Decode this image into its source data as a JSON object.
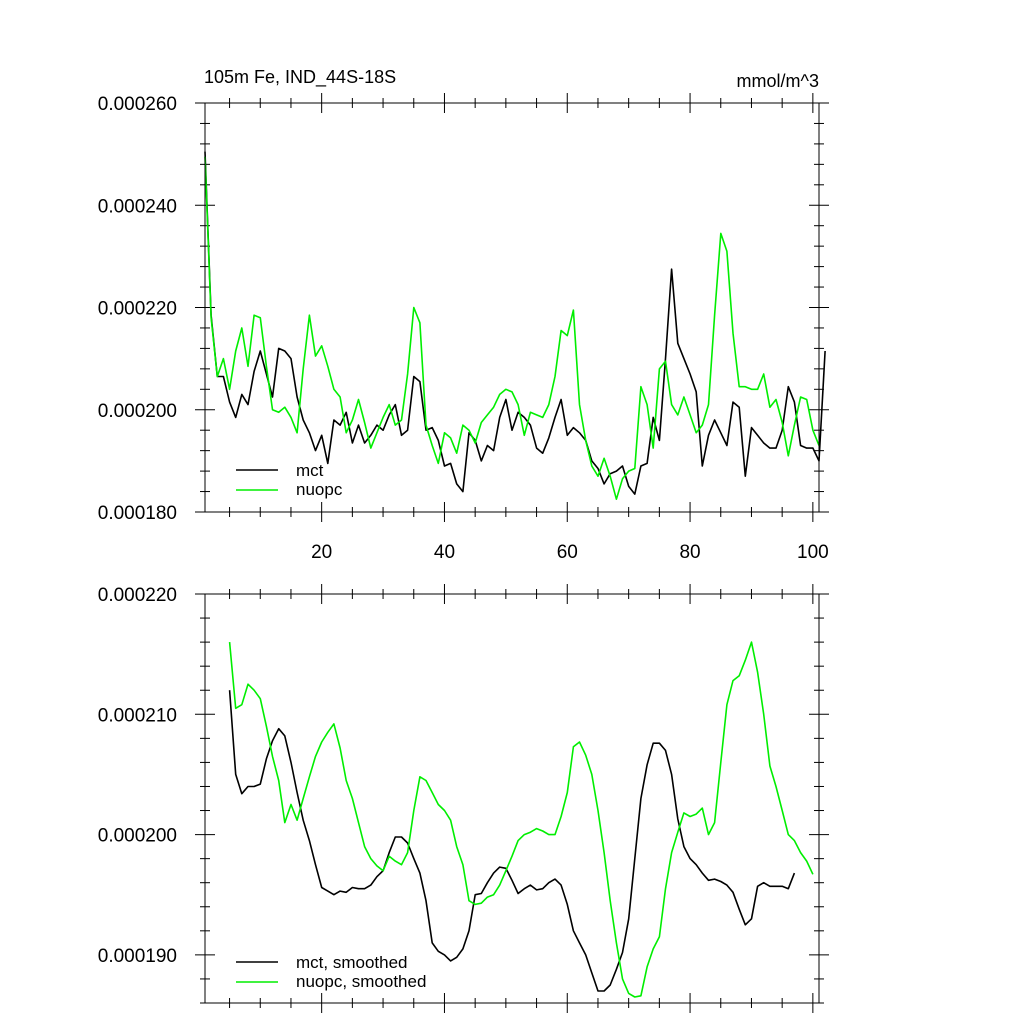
{
  "chart_data": [
    {
      "type": "line",
      "title": "105m Fe, IND_44S-18S",
      "units": "mmol/m^3",
      "xlim": [
        1,
        101
      ],
      "ylim": [
        0.00018,
        0.00026
      ],
      "x_ticks": [
        20,
        40,
        60,
        80,
        100
      ],
      "y_ticks": [
        "0.000180",
        "0.000200",
        "0.000220",
        "0.000240",
        "0.000260"
      ],
      "y_tick_values": [
        0.00018,
        0.0002,
        0.00022,
        0.00024,
        0.00026
      ],
      "legend_position": "bottom-left",
      "series": [
        {
          "name": "mct",
          "color": "#000000",
          "x_start": 1,
          "values": [
            0.0002505,
            0.0002185,
            0.0002065,
            0.0002065,
            0.0002015,
            0.0001985,
            0.000203,
            0.000201,
            0.0002075,
            0.0002115,
            0.000207,
            0.0002025,
            0.000212,
            0.0002115,
            0.00021,
            0.0002025,
            0.000198,
            0.0001955,
            0.000192,
            0.000195,
            0.0001895,
            0.000198,
            0.000197,
            0.0001995,
            0.0001935,
            0.000197,
            0.0001935,
            0.000195,
            0.000197,
            0.000196,
            0.000199,
            0.000201,
            0.000195,
            0.000196,
            0.0002065,
            0.0002055,
            0.000196,
            0.0001965,
            0.000194,
            0.000189,
            0.0001895,
            0.0001855,
            0.000184,
            0.0001955,
            0.000194,
            0.00019,
            0.000193,
            0.000192,
            0.0001985,
            0.000202,
            0.000196,
            0.0001995,
            0.0001985,
            0.000197,
            0.0001925,
            0.0001915,
            0.0001945,
            0.0001985,
            0.000202,
            0.000195,
            0.0001965,
            0.0001955,
            0.000194,
            0.00019,
            0.0001885,
            0.0001855,
            0.0001875,
            0.000188,
            0.000189,
            0.000185,
            0.0001835,
            0.000189,
            0.0001895,
            0.0001985,
            0.000194,
            0.00021,
            0.0002275,
            0.000213,
            0.00021,
            0.000207,
            0.0002035,
            0.000189,
            0.000195,
            0.000198,
            0.0001955,
            0.000193,
            0.0002015,
            0.0002005,
            0.000187,
            0.0001965,
            0.000195,
            0.0001935,
            0.0001925,
            0.0001925,
            0.000196,
            0.0002045,
            0.0002015,
            0.000193,
            0.0001925,
            0.0001925,
            0.00019,
            0.0002115
          ]
        },
        {
          "name": "nuopc",
          "color": "#00ee00",
          "x_start": 1,
          "values": [
            0.0002495,
            0.000218,
            0.0002065,
            0.00021,
            0.000204,
            0.0002115,
            0.000216,
            0.0002085,
            0.0002185,
            0.000218,
            0.0002085,
            0.0002,
            0.0001995,
            0.0002005,
            0.0001985,
            0.0001955,
            0.000208,
            0.0002185,
            0.0002105,
            0.0002125,
            0.0002085,
            0.000204,
            0.0002025,
            0.0001955,
            0.000198,
            0.000202,
            0.0001975,
            0.0001925,
            0.0001955,
            0.0001985,
            0.000201,
            0.000197,
            0.000198,
            0.000207,
            0.00022,
            0.000217,
            0.000197,
            0.000193,
            0.0001895,
            0.0001955,
            0.0001945,
            0.0001915,
            0.000197,
            0.000196,
            0.0001935,
            0.0001975,
            0.000199,
            0.0002005,
            0.000203,
            0.000204,
            0.0002035,
            0.000201,
            0.000195,
            0.0001995,
            0.000199,
            0.0001985,
            0.000201,
            0.0002065,
            0.0002155,
            0.0002145,
            0.0002195,
            0.000201,
            0.000194,
            0.000189,
            0.000187,
            0.0001905,
            0.000187,
            0.0001825,
            0.0001865,
            0.000188,
            0.0001885,
            0.0002045,
            0.000201,
            0.0001925,
            0.000208,
            0.0002095,
            0.000201,
            0.000199,
            0.0002025,
            0.000199,
            0.0001955,
            0.000197,
            0.000201,
            0.0002185,
            0.0002345,
            0.000231,
            0.000215,
            0.0002045,
            0.0002045,
            0.000204,
            0.000204,
            0.000207,
            0.0002005,
            0.000202,
            0.0001975,
            0.000191,
            0.000197,
            0.0002025,
            0.000202,
            0.000196,
            0.000193
          ]
        }
      ]
    },
    {
      "type": "line",
      "title": "",
      "ylim": [
        0.000186,
        0.00022
      ],
      "x_range": [
        1,
        101
      ],
      "y_ticks": [
        "0.000190",
        "0.000200",
        "0.000210",
        "0.000220"
      ],
      "y_tick_values": [
        0.00019,
        0.0002,
        0.00021,
        0.00022
      ],
      "legend_position": "bottom-left",
      "series": [
        {
          "name": "mct, smoothed",
          "color": "#000000",
          "x_start": 5,
          "values": [
            0.000212,
            0.000205,
            0.0002034,
            0.000204,
            0.000204,
            0.0002042,
            0.0002063,
            0.0002078,
            0.0002088,
            0.0002082,
            0.000206,
            0.0002035,
            0.0002012,
            0.0001995,
            0.0001975,
            0.0001956,
            0.0001953,
            0.000195,
            0.0001953,
            0.0001952,
            0.0001956,
            0.0001955,
            0.0001955,
            0.0001958,
            0.0001965,
            0.000197,
            0.0001985,
            0.0001998,
            0.0001998,
            0.0001993,
            0.000198,
            0.0001968,
            0.0001945,
            0.000191,
            0.0001903,
            0.00019,
            0.0001895,
            0.0001898,
            0.0001905,
            0.000192,
            0.000195,
            0.0001951,
            0.000196,
            0.0001968,
            0.0001973,
            0.0001972,
            0.0001962,
            0.0001951,
            0.0001955,
            0.0001958,
            0.0001954,
            0.0001955,
            0.000196,
            0.0001963,
            0.0001958,
            0.0001942,
            0.000192,
            0.000191,
            0.00019,
            0.0001885,
            0.000187,
            0.000187,
            0.0001875,
            0.0001888,
            0.0001902,
            0.000193,
            0.000198,
            0.000203,
            0.0002058,
            0.0002076,
            0.0002076,
            0.000207,
            0.000205,
            0.0002013,
            0.000199,
            0.000198,
            0.0001975,
            0.0001968,
            0.0001962,
            0.0001963,
            0.0001961,
            0.0001958,
            0.0001952,
            0.0001938,
            0.0001925,
            0.000193,
            0.0001957,
            0.000196,
            0.0001957,
            0.0001957,
            0.0001957,
            0.0001955,
            0.0001968
          ]
        },
        {
          "name": "nuopc, smoothed",
          "color": "#00ee00",
          "x_start": 5,
          "values": [
            0.000216,
            0.0002105,
            0.0002108,
            0.0002125,
            0.000212,
            0.0002113,
            0.000209,
            0.0002065,
            0.0002045,
            0.000201,
            0.0002025,
            0.0002012,
            0.000203,
            0.0002048,
            0.0002065,
            0.0002077,
            0.0002085,
            0.0002092,
            0.0002072,
            0.0002045,
            0.000203,
            0.000201,
            0.000199,
            0.000198,
            0.0001974,
            0.000197,
            0.0001982,
            0.0001978,
            0.0001975,
            0.0001985,
            0.000202,
            0.0002048,
            0.0002045,
            0.0002035,
            0.0002025,
            0.000202,
            0.0002012,
            0.000199,
            0.0001975,
            0.0001945,
            0.0001942,
            0.0001943,
            0.0001948,
            0.000195,
            0.0001958,
            0.000197,
            0.0001982,
            0.0001995,
            0.0002,
            0.0002002,
            0.0002005,
            0.0002003,
            0.0002,
            0.0002,
            0.0002015,
            0.0002035,
            0.0002073,
            0.0002077,
            0.0002066,
            0.000205,
            0.000202,
            0.0001985,
            0.0001945,
            0.000191,
            0.000188,
            0.0001868,
            0.0001865,
            0.0001866,
            0.000189,
            0.0001905,
            0.0001915,
            0.0001955,
            0.0001985,
            0.0002002,
            0.0002018,
            0.0002015,
            0.0002017,
            0.0002022,
            0.0002,
            0.000201,
            0.000206,
            0.0002108,
            0.0002128,
            0.0002132,
            0.0002145,
            0.000216,
            0.0002135,
            0.00021,
            0.0002057,
            0.000204,
            0.000202,
            0.0002,
            0.0001995,
            0.0001985,
            0.0001978,
            0.0001967
          ]
        }
      ]
    }
  ]
}
